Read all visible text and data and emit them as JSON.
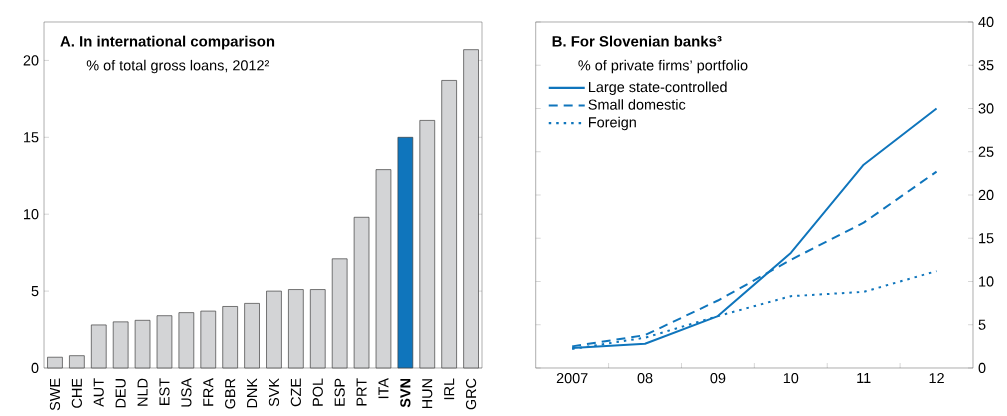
{
  "chart_data": [
    {
      "type": "bar",
      "title": "A. In international comparison",
      "subtitle": "% of total gross loans, 2012²",
      "categories": [
        "SWE",
        "CHE",
        "AUT",
        "DEU",
        "NLD",
        "EST",
        "USA",
        "FRA",
        "GBR",
        "DNK",
        "SVK",
        "CZE",
        "POL",
        "ESP",
        "PRT",
        "ITA",
        "**SVN**",
        "HUN",
        "IRL",
        "GRC"
      ],
      "values": [
        0.7,
        0.8,
        2.8,
        3.0,
        3.1,
        3.4,
        3.6,
        3.7,
        4.0,
        4.2,
        5.0,
        5.1,
        5.1,
        7.1,
        9.8,
        12.9,
        15.0,
        16.1,
        18.7,
        20.7
      ],
      "colors": [
        "#d3d4d6",
        "#d3d4d6",
        "#d3d4d6",
        "#d3d4d6",
        "#d3d4d6",
        "#d3d4d6",
        "#d3d4d6",
        "#d3d4d6",
        "#d3d4d6",
        "#d3d4d6",
        "#d3d4d6",
        "#d3d4d6",
        "#d3d4d6",
        "#d3d4d6",
        "#d3d4d6",
        "#d3d4d6",
        "#0f75bc",
        "#d3d4d6",
        "#d3d4d6",
        "#d3d4d6"
      ],
      "ylim": [
        0,
        22.5
      ],
      "yticks": [
        0,
        5,
        10,
        15,
        20
      ],
      "grid": false
    },
    {
      "type": "line",
      "title": "B. For Slovenian banks³",
      "subtitle": "% of private firms’ portfolio",
      "x": [
        2007,
        2008,
        2009,
        2010,
        2011,
        2012
      ],
      "series": [
        {
          "name": "Large state-controlled",
          "color": "#0f75bc",
          "line_style": "solid",
          "values": [
            2.3,
            2.8,
            6.0,
            13.3,
            23.5,
            30.0
          ]
        },
        {
          "name": "Small domestic",
          "color": "#0f75bc",
          "line_style": "dashed",
          "values": [
            2.5,
            3.8,
            7.8,
            12.5,
            16.8,
            22.7
          ]
        },
        {
          "name": "Foreign",
          "color": "#0f75bc",
          "line_style": "dotted",
          "values": [
            2.2,
            3.5,
            6.0,
            8.3,
            8.8,
            11.2
          ]
        }
      ],
      "xlim": [
        2006.5,
        2012.5
      ],
      "xticks": [
        2007,
        {
          "value": 2007.5,
          "label": null
        },
        {
          "value": 2008,
          "label": "08"
        },
        {
          "value": 2008.5,
          "label": null
        },
        {
          "value": 2009,
          "label": "09"
        },
        {
          "value": 2009.5,
          "label": null
        },
        {
          "value": 2010,
          "label": "10"
        },
        {
          "value": 2010.5,
          "label": null
        },
        {
          "value": 2011,
          "label": "11"
        },
        {
          "value": 2011.5,
          "label": null
        },
        {
          "value": 2012,
          "label": "12"
        }
      ],
      "ylim": [
        0,
        40
      ],
      "yticks": [
        0,
        5,
        10,
        15,
        20,
        25,
        30,
        35,
        40
      ],
      "grid": false,
      "legend": "top left",
      "marker": "none"
    }
  ]
}
